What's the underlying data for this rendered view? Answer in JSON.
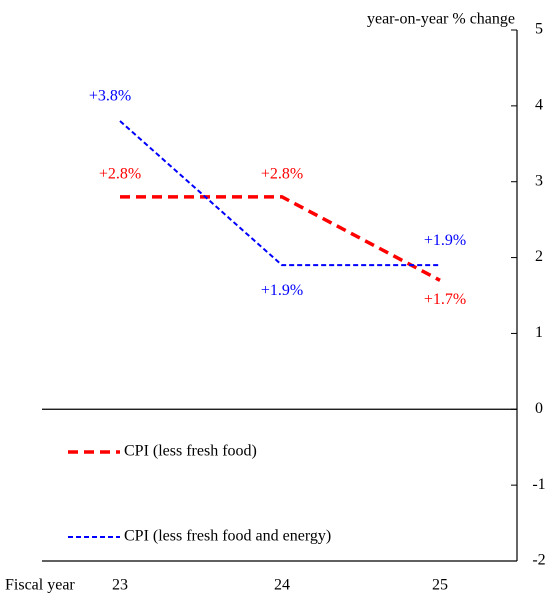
{
  "chart_data": {
    "type": "line",
    "y_label": "year-on-year % change",
    "x_label": "Fiscal year",
    "categories": [
      "23",
      "24",
      "25"
    ],
    "series": [
      {
        "name": "CPI (less fresh food)",
        "color": "#ff0000",
        "values": [
          2.8,
          2.8,
          1.7
        ],
        "value_labels": [
          "+2.8%",
          "+2.8%",
          "+1.7%"
        ]
      },
      {
        "name": "CPI (less fresh food and energy)",
        "color": "#0000ff",
        "values": [
          3.8,
          1.9,
          1.9
        ],
        "value_labels": [
          "+3.8%",
          "+1.9%",
          "+1.9%"
        ]
      }
    ],
    "ylim": [
      -2,
      5
    ],
    "yticks": [
      -2,
      -1,
      0,
      1,
      2,
      3,
      4,
      5
    ],
    "y_axis_side": "right",
    "legend": "lower left"
  }
}
